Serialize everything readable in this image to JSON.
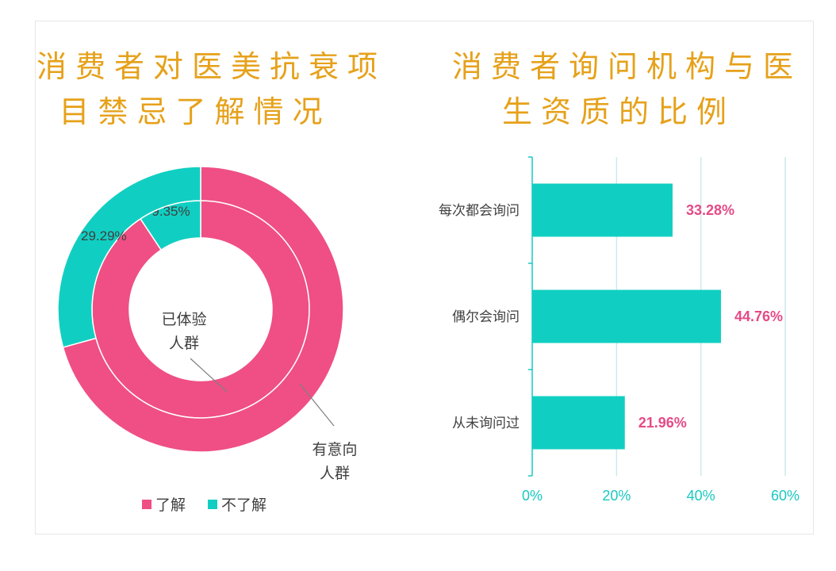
{
  "left": {
    "title_lines": [
      "消费者对医美抗衰项",
      "目禁忌了解情况"
    ],
    "inner_ring_label": [
      "已体验",
      "人群"
    ],
    "outer_ring_label": [
      "有意向",
      "人群"
    ],
    "legend": [
      {
        "label": "了解",
        "color": "#ef4f84"
      },
      {
        "label": "不了解",
        "color": "#10cfc2"
      }
    ]
  },
  "right": {
    "title_lines": [
      "消费者询问机构与医",
      "生资质的比例"
    ]
  },
  "chart_data": [
    {
      "type": "donut",
      "title": "消费者对医美抗衰项目禁忌了解情况",
      "categories": [
        "了解",
        "不了解"
      ],
      "colors": [
        "#ef4f84",
        "#10cfc2"
      ],
      "series": [
        {
          "name": "已体验人群",
          "ring": "inner",
          "values": [
            90.65,
            9.35
          ],
          "labels": [
            "",
            "9.35%"
          ]
        },
        {
          "name": "有意向人群",
          "ring": "outer",
          "values": [
            70.71,
            29.29
          ],
          "labels": [
            "",
            "29.29%"
          ]
        }
      ]
    },
    {
      "type": "bar",
      "orientation": "horizontal",
      "title": "消费者询问机构与医生资质的比例",
      "categories": [
        "每次都会询问",
        "偶尔会询问",
        "从未询问过"
      ],
      "values": [
        33.28,
        44.76,
        21.96
      ],
      "value_labels": [
        "33.28%",
        "44.76%",
        "21.96%"
      ],
      "xlim": [
        0,
        60
      ],
      "xticks": [
        "0%",
        "20%",
        "40%",
        "60%"
      ],
      "bar_color": "#10cfc2",
      "value_label_color": "#e64a86",
      "grid": true
    }
  ]
}
